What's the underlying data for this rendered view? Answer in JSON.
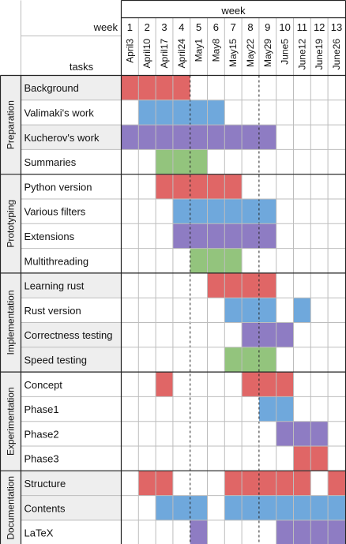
{
  "header": {
    "week_title": "week",
    "week_label": "week",
    "tasks_label": "tasks",
    "week_numbers": [
      "1",
      "2",
      "3",
      "4",
      "5",
      "6",
      "7",
      "8",
      "9",
      "10",
      "11",
      "12",
      "13"
    ],
    "dates": [
      "April3",
      "April10",
      "April17",
      "April24",
      "May1",
      "May8",
      "May15",
      "May22",
      "May29",
      "June5",
      "June12",
      "June19",
      "June26"
    ]
  },
  "colors": {
    "red": "#e06666",
    "blue": "#6fa8dc",
    "purple": "#8e7cc3",
    "green": "#93c47d",
    "shade": "#eeeeee",
    "grid": "#bdbdbd",
    "border": "#222222"
  },
  "groups": [
    {
      "name": "Preparation",
      "tasks": [
        {
          "name": "Background",
          "shaded": true,
          "bars": [
            {
              "color": "red",
              "weeks": [
                1,
                2,
                3,
                4
              ]
            }
          ]
        },
        {
          "name": "Valimaki's work",
          "shaded": false,
          "bars": [
            {
              "color": "blue",
              "weeks": [
                2,
                3,
                4,
                5,
                6
              ]
            }
          ]
        },
        {
          "name": "Kucherov's work",
          "shaded": true,
          "bars": [
            {
              "color": "purple",
              "weeks": [
                1,
                2,
                3,
                4,
                5,
                6,
                7,
                8,
                9
              ]
            }
          ]
        },
        {
          "name": "Summaries",
          "shaded": false,
          "bars": [
            {
              "color": "green",
              "weeks": [
                3,
                4,
                5
              ]
            }
          ]
        }
      ]
    },
    {
      "name": "Prototyping",
      "tasks": [
        {
          "name": "Python version",
          "shaded": false,
          "bars": [
            {
              "color": "red",
              "weeks": [
                3,
                4,
                5,
                6,
                7
              ]
            }
          ]
        },
        {
          "name": "Various filters",
          "shaded": false,
          "bars": [
            {
              "color": "blue",
              "weeks": [
                4,
                5,
                6,
                7,
                8,
                9
              ]
            }
          ]
        },
        {
          "name": "Extensions",
          "shaded": false,
          "bars": [
            {
              "color": "purple",
              "weeks": [
                4,
                5,
                6,
                7,
                8,
                9
              ]
            }
          ]
        },
        {
          "name": "Multithreading",
          "shaded": false,
          "bars": [
            {
              "color": "green",
              "weeks": [
                5,
                6,
                7
              ]
            }
          ]
        }
      ]
    },
    {
      "name": "Implementation",
      "tasks": [
        {
          "name": "Learning rust",
          "shaded": true,
          "bars": [
            {
              "color": "red",
              "weeks": [
                6,
                7,
                8,
                9
              ]
            }
          ]
        },
        {
          "name": "Rust version",
          "shaded": false,
          "bars": [
            {
              "color": "blue",
              "weeks": [
                7,
                8,
                9,
                11
              ]
            }
          ]
        },
        {
          "name": "Correctness testing",
          "shaded": true,
          "bars": [
            {
              "color": "purple",
              "weeks": [
                8,
                9,
                10
              ]
            }
          ]
        },
        {
          "name": "Speed testing",
          "shaded": true,
          "bars": [
            {
              "color": "green",
              "weeks": [
                7,
                8,
                9
              ]
            }
          ]
        }
      ]
    },
    {
      "name": "Experimentation",
      "tasks": [
        {
          "name": "Concept",
          "shaded": false,
          "bars": [
            {
              "color": "red",
              "weeks": [
                3,
                8,
                9,
                10
              ]
            }
          ]
        },
        {
          "name": "Phase1",
          "shaded": false,
          "bars": [
            {
              "color": "blue",
              "weeks": [
                9,
                10
              ]
            }
          ]
        },
        {
          "name": "Phase2",
          "shaded": false,
          "bars": [
            {
              "color": "purple",
              "weeks": [
                10,
                11,
                12
              ]
            }
          ]
        },
        {
          "name": "Phase3",
          "shaded": false,
          "bars": [
            {
              "color": "red",
              "weeks": [
                11,
                12
              ]
            }
          ]
        }
      ]
    },
    {
      "name": "Documentation",
      "tasks": [
        {
          "name": "Structure",
          "shaded": true,
          "bars": [
            {
              "color": "red",
              "weeks": [
                2,
                3,
                7,
                8,
                9,
                10,
                11,
                13
              ]
            }
          ]
        },
        {
          "name": "Contents",
          "shaded": true,
          "bars": [
            {
              "color": "blue",
              "weeks": [
                3,
                4,
                5,
                7,
                8,
                9,
                10,
                11,
                12,
                13
              ]
            }
          ]
        },
        {
          "name": "LaTeX",
          "shaded": false,
          "bars": [
            {
              "color": "purple",
              "weeks": [
                5,
                10,
                11,
                12,
                13
              ]
            }
          ]
        }
      ]
    }
  ],
  "dashed_after_weeks": [
    4,
    8
  ]
}
